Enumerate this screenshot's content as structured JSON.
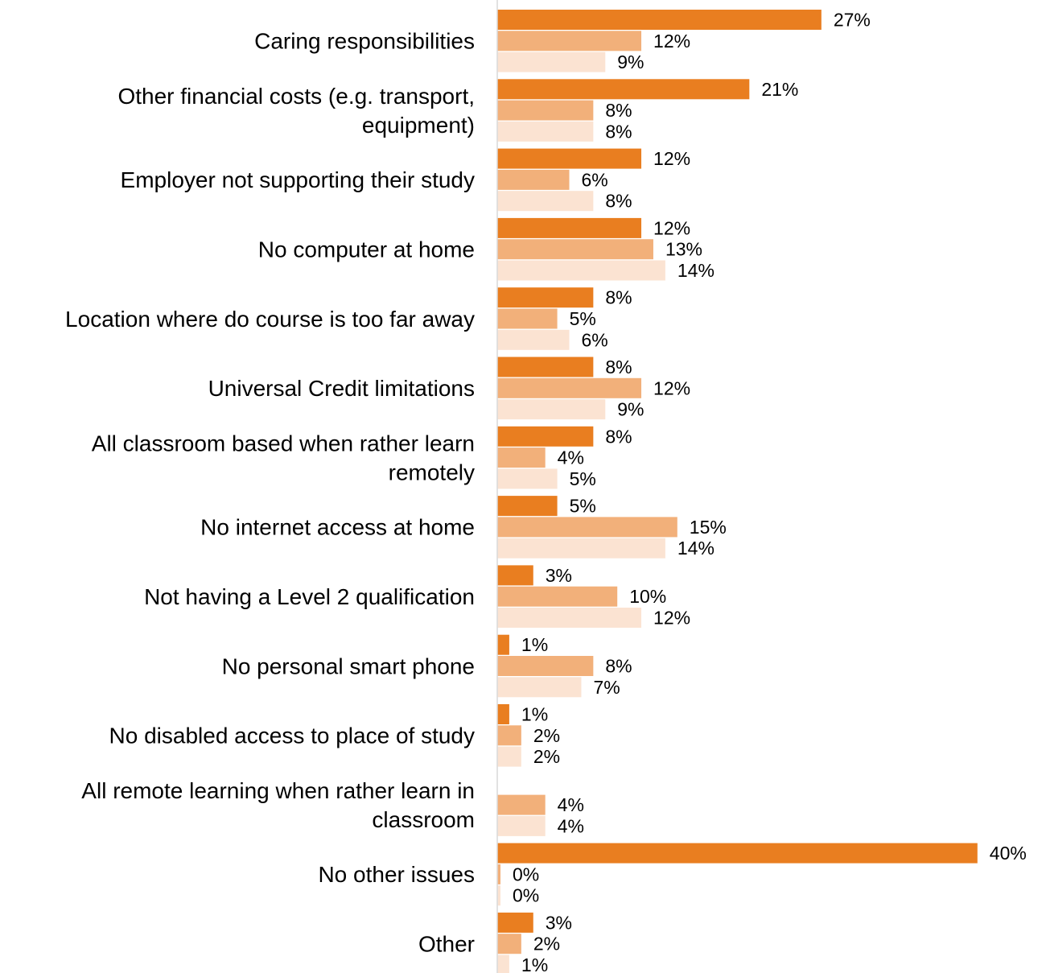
{
  "chart_data": {
    "type": "bar",
    "orientation": "horizontal",
    "grid": false,
    "legend": "none",
    "categories": [
      "Caring responsibilities",
      "Other financial costs (e.g. transport, equipment)",
      "Employer not supporting their study",
      "No computer at home",
      "Location where do course is too far away",
      "Universal Credit limitations",
      "All classroom based when rather learn remotely",
      "No internet access at home",
      "Not having a Level 2 qualification",
      "No personal smart phone",
      "No disabled access to place of study",
      "All remote learning when rather learn in classroom",
      "No other issues",
      "Other"
    ],
    "category_lines": [
      [
        "Caring responsibilities"
      ],
      [
        "Other financial costs (e.g. transport,",
        "equipment)"
      ],
      [
        "Employer not supporting their study"
      ],
      [
        "No computer at home"
      ],
      [
        "Location where do course is too far away"
      ],
      [
        "Universal Credit limitations"
      ],
      [
        "All classroom based when rather learn",
        "remotely"
      ],
      [
        "No internet access at home"
      ],
      [
        "Not having a Level 2 qualification"
      ],
      [
        "No personal smart phone"
      ],
      [
        "No disabled access to place of study"
      ],
      [
        "All remote learning when rather learn in",
        "classroom"
      ],
      [
        "No other issues"
      ],
      [
        "Other"
      ]
    ],
    "series": [
      {
        "color": "#E97E20",
        "values": [
          27,
          21,
          12,
          12,
          8,
          8,
          8,
          5,
          3,
          1,
          1,
          null,
          40,
          3
        ]
      },
      {
        "color": "#F2B07A",
        "values": [
          12,
          8,
          6,
          13,
          5,
          12,
          4,
          15,
          10,
          8,
          2,
          4,
          0,
          2
        ]
      },
      {
        "color": "#FBE3D2",
        "values": [
          9,
          8,
          8,
          14,
          6,
          9,
          5,
          14,
          12,
          7,
          2,
          4,
          0,
          1
        ]
      }
    ],
    "value_suffix": "%",
    "xlim": [
      0,
      40
    ],
    "axis_color": "#D9D9D9"
  }
}
